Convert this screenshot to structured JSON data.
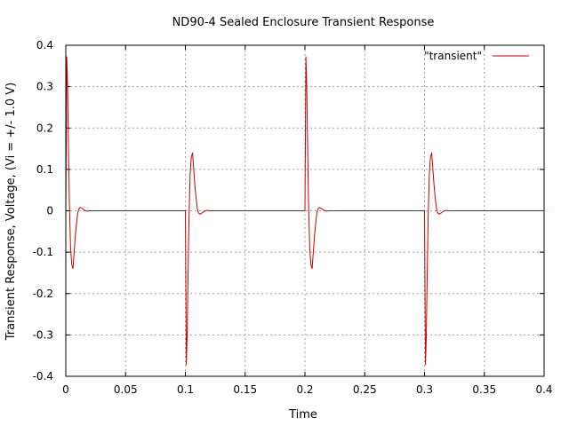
{
  "chart_data": {
    "type": "line",
    "title": "ND90-4 Sealed Enclosure Transient Response",
    "xlabel": "Time",
    "ylabel": "Transient Response, Voltage, (Vi = +/- 1.0 V)",
    "xlim": [
      0,
      0.4
    ],
    "ylim": [
      -0.4,
      0.4
    ],
    "xticks": [
      0,
      0.05,
      0.1,
      0.15,
      0.2,
      0.25,
      0.3,
      0.35,
      0.4
    ],
    "xtick_labels": [
      "0",
      "0.05",
      "0.1",
      "0.15",
      "0.2",
      "0.25",
      "0.3",
      "0.35",
      "0.4"
    ],
    "yticks": [
      -0.4,
      -0.3,
      -0.2,
      -0.1,
      0,
      0.1,
      0.2,
      0.3,
      0.4
    ],
    "ytick_labels": [
      "-0.4",
      "-0.3",
      "-0.2",
      "-0.1",
      "0",
      "0.1",
      "0.2",
      "0.3",
      "0.4"
    ],
    "grid": true,
    "legend_position": "top-right",
    "series": [
      {
        "name": "\"transient\"",
        "color": "#cc0000",
        "x": [
          0,
          0.0008,
          0.0015,
          0.002,
          0.003,
          0.004,
          0.005,
          0.006,
          0.007,
          0.008,
          0.009,
          0.01,
          0.011,
          0.012,
          0.013,
          0.014,
          0.015,
          0.016,
          0.017,
          0.018,
          0.02,
          0.025,
          0.05,
          0.08,
          0.1,
          0.1008,
          0.1015,
          0.102,
          0.103,
          0.104,
          0.105,
          0.106,
          0.107,
          0.108,
          0.109,
          0.11,
          0.111,
          0.112,
          0.113,
          0.114,
          0.115,
          0.116,
          0.117,
          0.118,
          0.12,
          0.125,
          0.15,
          0.18,
          0.2,
          0.2008,
          0.2015,
          0.202,
          0.203,
          0.204,
          0.205,
          0.206,
          0.207,
          0.208,
          0.209,
          0.21,
          0.211,
          0.212,
          0.213,
          0.214,
          0.215,
          0.216,
          0.217,
          0.218,
          0.22,
          0.225,
          0.25,
          0.28,
          0.3,
          0.3008,
          0.3015,
          0.302,
          0.303,
          0.304,
          0.305,
          0.306,
          0.307,
          0.308,
          0.309,
          0.31,
          0.311,
          0.312,
          0.313,
          0.314,
          0.315,
          0.316,
          0.317,
          0.318,
          0.32,
          0.325,
          0.35,
          0.38,
          0.4
        ],
        "y": [
          0,
          0.372,
          0.3,
          0.2,
          0.02,
          -0.09,
          -0.13,
          -0.14,
          -0.1,
          -0.06,
          -0.03,
          -0.005,
          0.005,
          0.008,
          0.007,
          0.005,
          0.003,
          0.001,
          0,
          -0.001,
          0,
          0,
          0,
          0,
          0,
          -0.372,
          -0.3,
          -0.2,
          -0.02,
          0.09,
          0.13,
          0.14,
          0.1,
          0.06,
          0.03,
          0.005,
          -0.005,
          -0.008,
          -0.007,
          -0.005,
          -0.003,
          -0.001,
          0,
          0.001,
          0,
          0,
          0,
          0,
          0,
          0.372,
          0.3,
          0.2,
          0.02,
          -0.09,
          -0.13,
          -0.14,
          -0.1,
          -0.06,
          -0.03,
          -0.005,
          0.005,
          0.008,
          0.007,
          0.005,
          0.003,
          0.001,
          0,
          -0.001,
          0,
          0,
          0,
          0,
          0,
          -0.372,
          -0.3,
          -0.2,
          -0.02,
          0.09,
          0.13,
          0.14,
          0.1,
          0.06,
          0.03,
          0.005,
          -0.005,
          -0.008,
          -0.007,
          -0.005,
          -0.003,
          -0.001,
          0,
          0.001,
          0,
          0,
          0,
          0,
          0
        ]
      }
    ]
  }
}
